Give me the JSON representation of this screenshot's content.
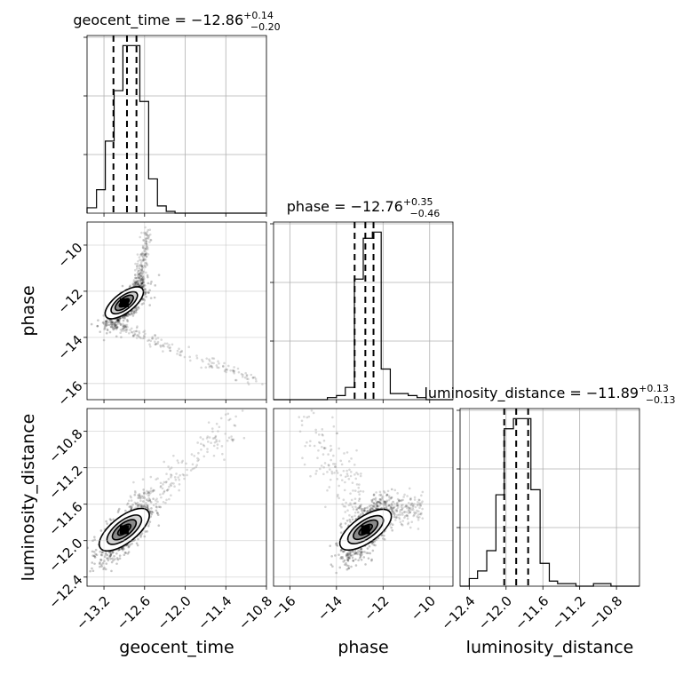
{
  "chart_data": {
    "type": "corner",
    "parameters": [
      "geocent_time",
      "phase",
      "luminosity_distance"
    ],
    "titles": [
      {
        "param": "geocent_time",
        "prefix": "geocent_time = ",
        "median": "−12.86",
        "plus": "+0.14",
        "minus": "−0.20"
      },
      {
        "param": "phase",
        "prefix": "phase = ",
        "median": "−12.76",
        "plus": "+0.35",
        "minus": "−0.46"
      },
      {
        "param": "luminosity_distance",
        "prefix": "luminosity_distance = ",
        "median": "−11.89",
        "plus": "+0.13",
        "minus": "−0.13"
      }
    ],
    "xlabels": [
      "geocent_time",
      "phase",
      "luminosity_distance"
    ],
    "ylabels": [
      "",
      "phase",
      "luminosity_distance"
    ],
    "grid": true,
    "axes": {
      "geocent_time": {
        "range": [
          -13.45,
          -10.8
        ],
        "ticks": [
          -13.2,
          -12.6,
          -12.0,
          -11.4,
          -10.8
        ],
        "tick_labels": [
          "−13.2",
          "−12.6",
          "−12.0",
          "−11.4",
          "−10.8"
        ]
      },
      "phase": {
        "range": [
          -16.7,
          -9.0
        ],
        "ticks": [
          -16,
          -14,
          -12,
          -10
        ],
        "tick_labels": [
          "−16",
          "−14",
          "−12",
          "−10"
        ]
      },
      "luminosity_distance": {
        "range": [
          -12.5,
          -10.55
        ],
        "ticks": [
          -12.4,
          -12.0,
          -11.6,
          -11.2,
          -10.8
        ],
        "tick_labels": [
          "−12.4",
          "−12.0",
          "−11.6",
          "−11.2",
          "−10.8"
        ]
      }
    },
    "histograms": [
      {
        "param": "geocent_time",
        "bin_edges": [
          -13.45,
          -13.31,
          -13.18,
          -13.05,
          -12.92,
          -12.8,
          -12.67,
          -12.54,
          -12.41,
          -12.28,
          -12.15,
          -12.02,
          -11.89,
          -11.76,
          -11.63,
          -11.5,
          -11.37,
          -11.24,
          -11.11,
          -10.98,
          -10.8
        ],
        "counts": [
          3,
          13,
          40,
          68,
          93,
          93,
          62,
          19,
          4,
          1,
          0,
          0,
          0,
          0,
          0,
          0,
          0,
          0,
          0,
          0
        ],
        "quantiles": [
          -13.06,
          -12.86,
          -12.72
        ]
      },
      {
        "param": "phase",
        "bin_edges": [
          -16.7,
          -16.31,
          -15.93,
          -15.54,
          -15.16,
          -14.77,
          -14.39,
          -14.0,
          -13.62,
          -13.23,
          -12.85,
          -12.46,
          -12.08,
          -11.69,
          -11.31,
          -10.92,
          -10.54,
          -10.15,
          -9.77,
          -9.38,
          -9.0
        ],
        "counts": [
          0,
          0,
          0,
          0,
          0,
          0,
          1,
          2,
          6,
          59,
          79,
          82,
          15,
          3,
          3,
          2,
          1,
          0,
          0,
          0
        ],
        "quantiles": [
          -13.22,
          -12.76,
          -12.41
        ]
      },
      {
        "param": "luminosity_distance",
        "bin_edges": [
          -12.5,
          -12.4,
          -12.31,
          -12.21,
          -12.11,
          -12.02,
          -11.92,
          -11.82,
          -11.73,
          -11.63,
          -11.53,
          -11.44,
          -11.34,
          -11.24,
          -11.15,
          -11.05,
          -10.95,
          -10.86,
          -10.76,
          -10.67,
          -10.55
        ],
        "counts": [
          0,
          3,
          6,
          14,
          36,
          62,
          66,
          66,
          38,
          9,
          2,
          1,
          1,
          0,
          0,
          1,
          1,
          0,
          0,
          0
        ],
        "quantiles": [
          -12.02,
          -11.89,
          -11.76
        ]
      }
    ],
    "scatter_2d": [
      {
        "x_param": "geocent_time",
        "y_param": "phase",
        "mode": [
          -12.9,
          -12.5
        ]
      },
      {
        "x_param": "geocent_time",
        "y_param": "luminosity_distance",
        "mode": [
          -12.9,
          -11.88
        ]
      },
      {
        "x_param": "phase",
        "y_param": "luminosity_distance",
        "mode": [
          -12.75,
          -11.88
        ]
      }
    ]
  }
}
